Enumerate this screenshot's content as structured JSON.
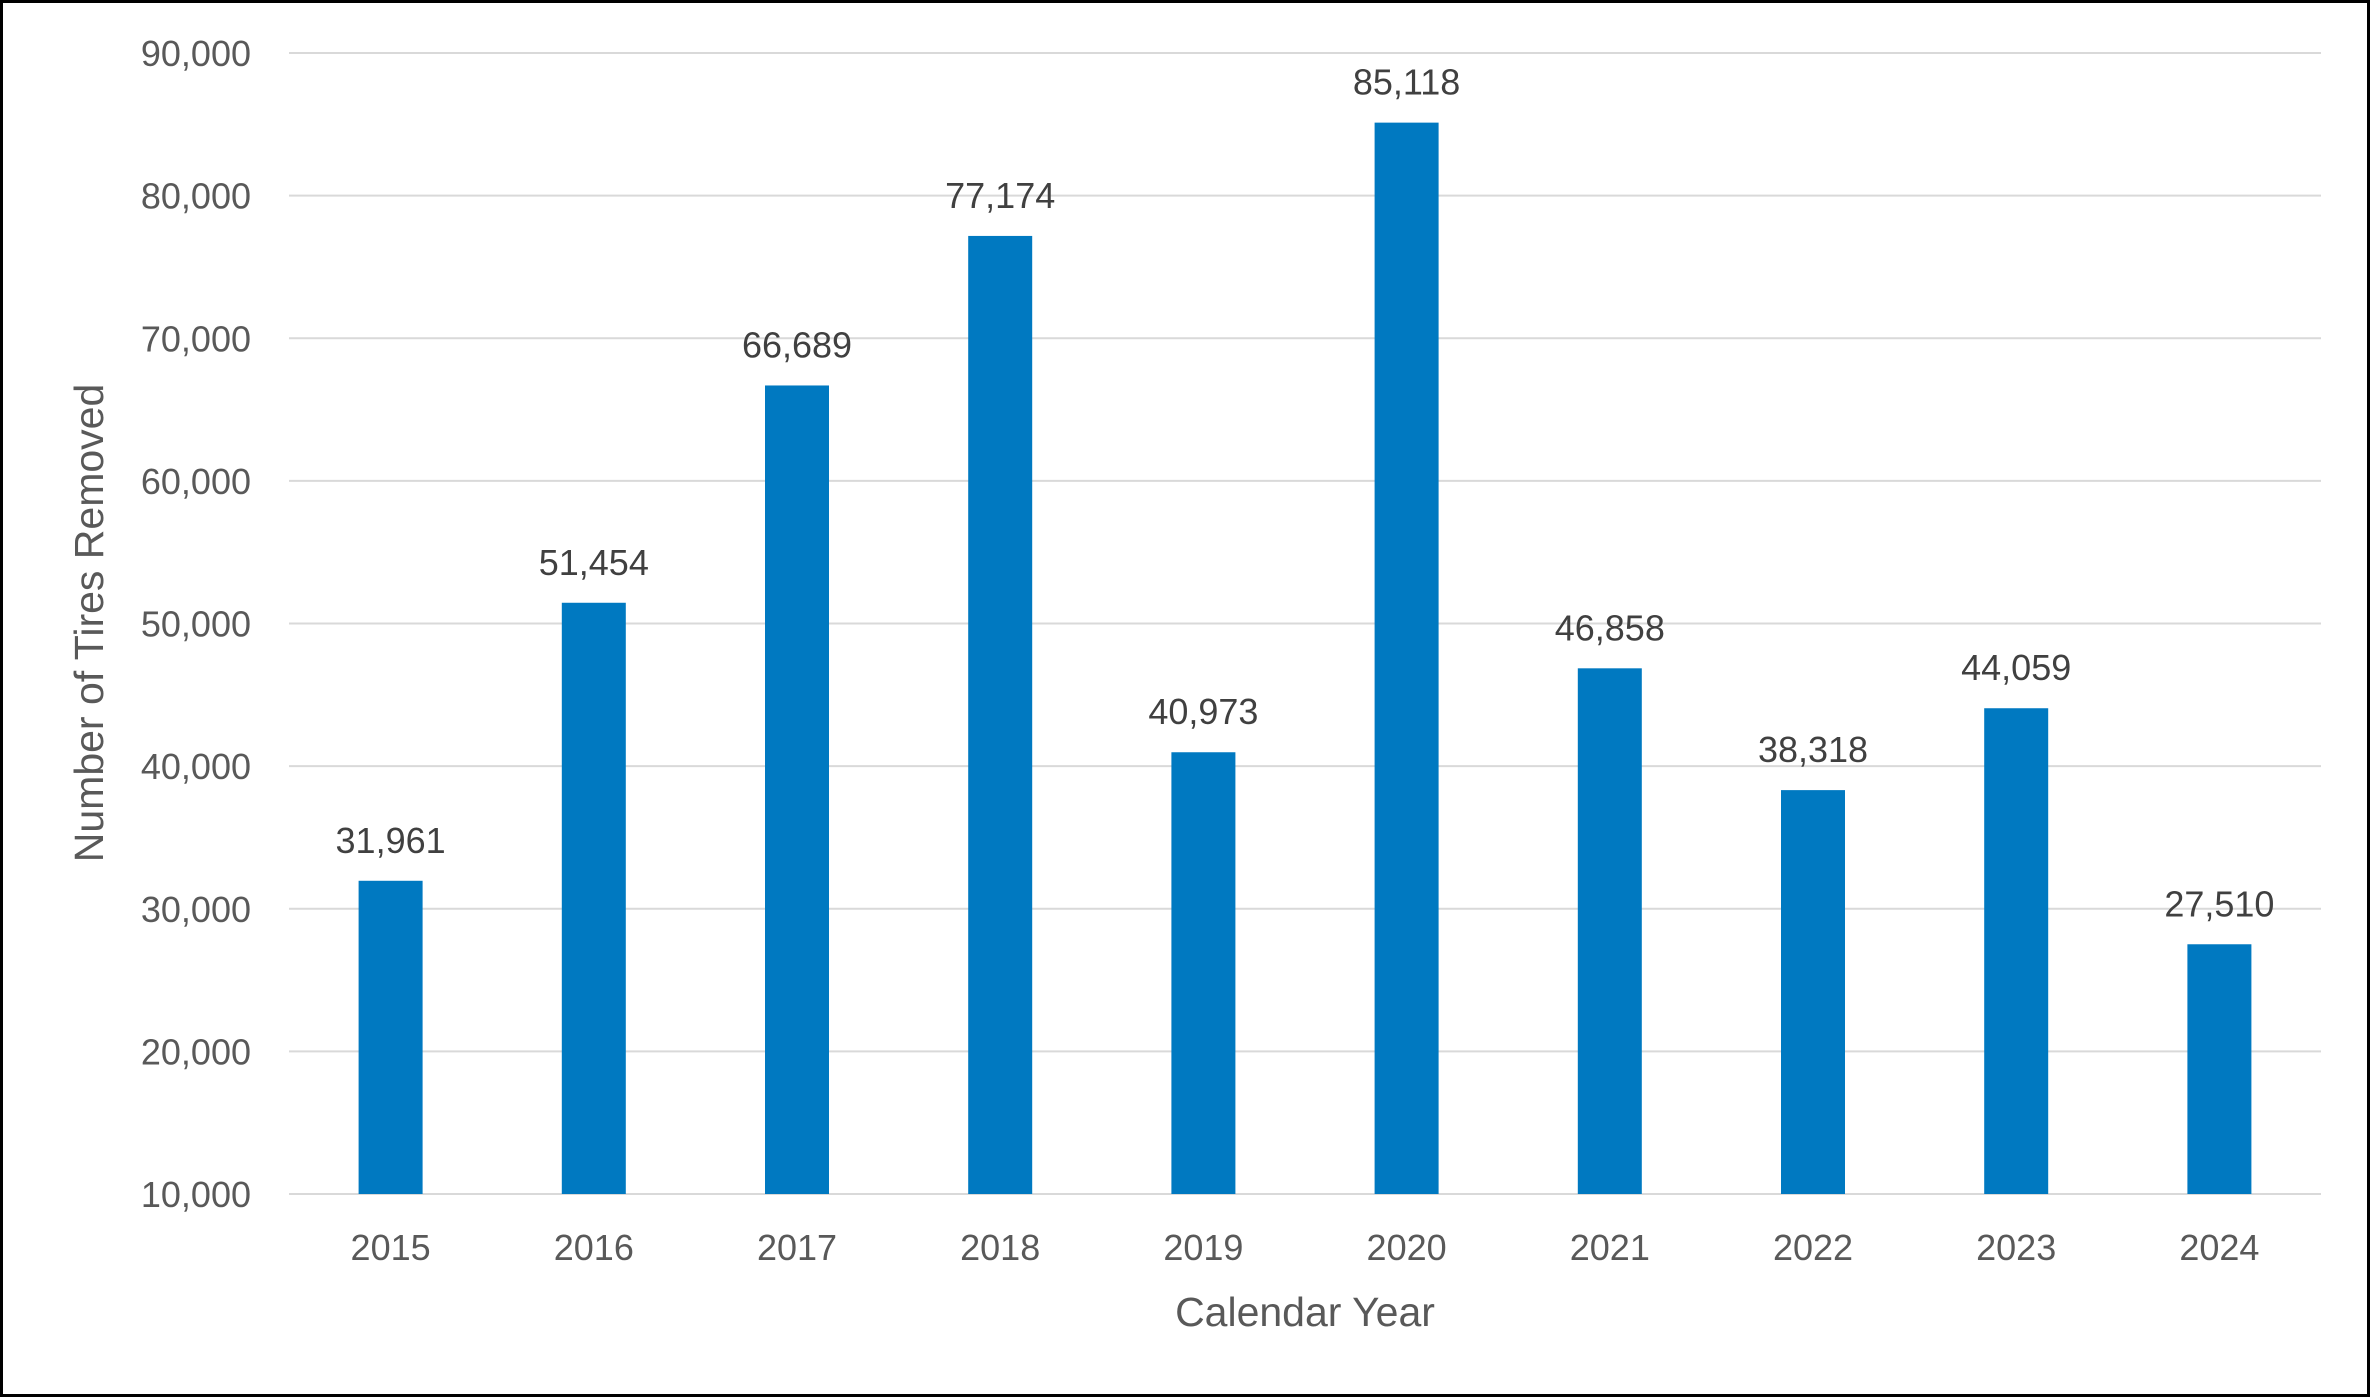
{
  "chart_data": {
    "type": "bar",
    "title": "",
    "xlabel": "Calendar Year",
    "ylabel": "Number of Tires Removed",
    "categories": [
      "2015",
      "2016",
      "2017",
      "2018",
      "2019",
      "2020",
      "2021",
      "2022",
      "2023",
      "2024"
    ],
    "values": [
      31961,
      51454,
      66689,
      77174,
      40973,
      85118,
      46858,
      38318,
      44059,
      27510
    ],
    "value_labels": [
      "31,961",
      "51,454",
      "66,689",
      "77,174",
      "40,973",
      "85,118",
      "46,858",
      "38,318",
      "44,059",
      "27,510"
    ],
    "ylim": [
      10000,
      90000
    ],
    "yticks": [
      10000,
      20000,
      30000,
      40000,
      50000,
      60000,
      70000,
      80000,
      90000
    ],
    "ytick_labels": [
      "10,000",
      "20,000",
      "30,000",
      "40,000",
      "50,000",
      "60,000",
      "70,000",
      "80,000",
      "90,000"
    ],
    "grid": true,
    "legend": "none",
    "bar_color": "#0079C1",
    "grid_color": "#D9D9D9"
  }
}
